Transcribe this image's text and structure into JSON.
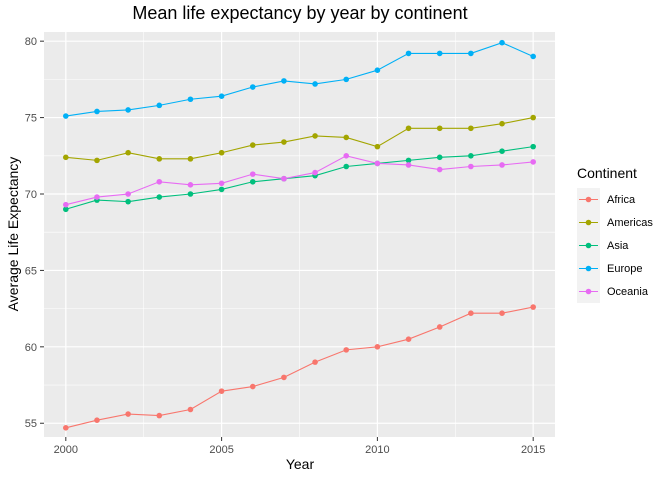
{
  "chart_data": {
    "type": "line",
    "title": "Mean life expectancy by year by continent",
    "xlabel": "Year",
    "ylabel": "Average Life Expectancy",
    "xlim": [
      1999.3,
      2015.7
    ],
    "ylim": [
      54.1,
      80.6
    ],
    "x_ticks": [
      2000,
      2005,
      2010,
      2015
    ],
    "x_tick_labels": [
      "2000",
      "2005",
      "2010",
      "2015"
    ],
    "y_ticks": [
      55,
      60,
      65,
      70,
      75,
      80
    ],
    "y_tick_labels": [
      "55",
      "60",
      "65",
      "70",
      "75",
      "80"
    ],
    "grid": true,
    "legend_title": "Continent",
    "legend_position": "right",
    "x": [
      2000,
      2001,
      2002,
      2003,
      2004,
      2005,
      2006,
      2007,
      2008,
      2009,
      2010,
      2011,
      2012,
      2013,
      2014,
      2015
    ],
    "series": [
      {
        "name": "Africa",
        "color": "#F8766D",
        "values": [
          54.7,
          55.2,
          55.6,
          55.5,
          55.9,
          57.1,
          57.4,
          58.0,
          59.0,
          59.8,
          60.0,
          60.5,
          61.3,
          62.2,
          62.2,
          62.6
        ]
      },
      {
        "name": "Americas",
        "color": "#A3A500",
        "values": [
          72.4,
          72.2,
          72.7,
          72.3,
          72.3,
          72.7,
          73.2,
          73.4,
          73.8,
          73.7,
          73.1,
          74.3,
          74.3,
          74.3,
          74.6,
          75.0
        ]
      },
      {
        "name": "Asia",
        "color": "#00BF7D",
        "values": [
          69.0,
          69.6,
          69.5,
          69.8,
          70.0,
          70.3,
          70.8,
          71.0,
          71.2,
          71.8,
          72.0,
          72.2,
          72.4,
          72.5,
          72.8,
          73.1
        ]
      },
      {
        "name": "Europe",
        "color": "#00B0F6",
        "values": [
          75.1,
          75.4,
          75.5,
          75.8,
          76.2,
          76.4,
          77.0,
          77.4,
          77.2,
          77.5,
          78.1,
          79.2,
          79.2,
          79.2,
          79.9,
          79.0
        ]
      },
      {
        "name": "Oceania",
        "color": "#E76BF3",
        "values": [
          69.3,
          69.8,
          70.0,
          70.8,
          70.6,
          70.7,
          71.3,
          71.0,
          71.4,
          72.5,
          72.0,
          71.9,
          71.6,
          71.8,
          71.9,
          72.1
        ]
      }
    ]
  }
}
